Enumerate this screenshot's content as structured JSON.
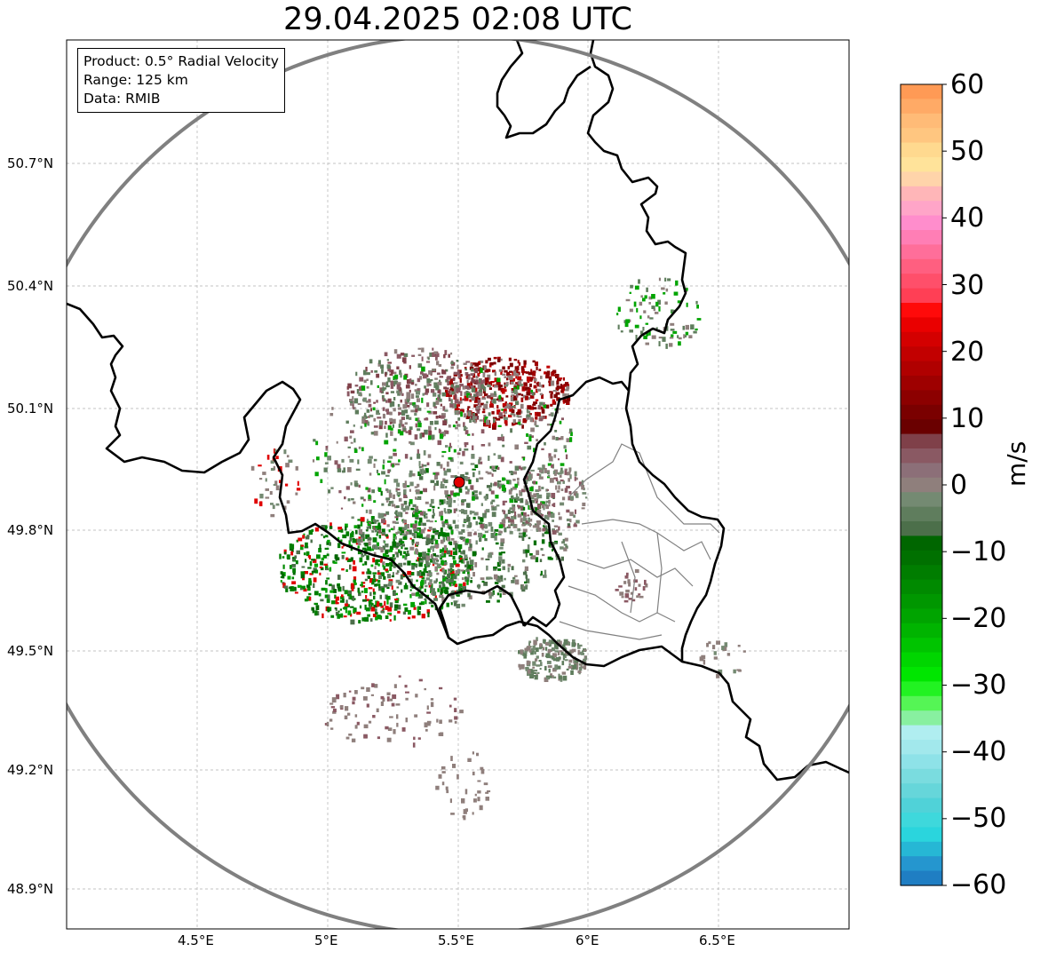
{
  "title": "29.04.2025 02:08 UTC",
  "info": {
    "product": "Product: 0.5° Radial Velocity",
    "range": "Range: 125 km",
    "data": "Data: RMIB"
  },
  "lat_labels": [
    "50.7°N",
    "50.4°N",
    "50.1°N",
    "49.8°N",
    "49.5°N",
    "49.2°N",
    "48.9°N"
  ],
  "lon_labels": [
    "4.5°E",
    "5°E",
    "5.5°E",
    "6°E",
    "6.5°E"
  ],
  "colorbar": {
    "unit": "m/s",
    "ticks": [
      "60",
      "50",
      "40",
      "30",
      "20",
      "10",
      "0",
      "−10",
      "−20",
      "−30",
      "−40",
      "−50",
      "−60"
    ],
    "min": -60,
    "max": 60
  },
  "radar_site": {
    "lon": 5.5,
    "lat": 49.91
  },
  "colors": {
    "range_ring": "#808080",
    "border": "#000000",
    "site_marker": "#e00000"
  }
}
